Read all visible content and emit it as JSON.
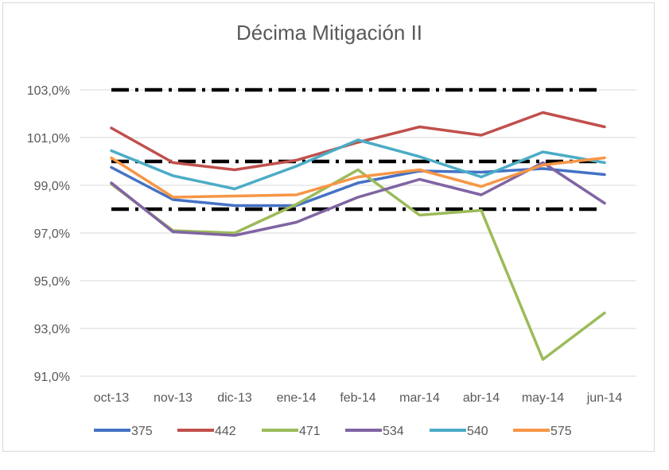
{
  "chart_data": {
    "type": "line",
    "title": "Décima Mitigación II",
    "categories": [
      "oct-13",
      "nov-13",
      "dic-13",
      "ene-14",
      "feb-14",
      "mar-14",
      "abr-14",
      "may-14",
      "jun-14"
    ],
    "yticks": [
      "91,0%",
      "93,0%",
      "95,0%",
      "97,0%",
      "99,0%",
      "101,0%",
      "103,0%"
    ],
    "ylim": [
      91,
      103
    ],
    "grid": true,
    "legend_position": "bottom",
    "reference_lines": [
      103,
      100,
      98
    ],
    "series": [
      {
        "name": "375",
        "color": "#4472C4",
        "values": [
          99.75,
          98.4,
          98.15,
          98.15,
          99.1,
          99.6,
          99.55,
          99.7,
          99.45
        ]
      },
      {
        "name": "442",
        "color": "#C0504D",
        "values": [
          101.4,
          99.95,
          99.65,
          100.05,
          100.8,
          101.45,
          101.1,
          102.05,
          101.45
        ]
      },
      {
        "name": "471",
        "color": "#9BBB59",
        "values": [
          99.05,
          97.1,
          97.0,
          98.2,
          99.65,
          97.75,
          97.95,
          91.7,
          93.65
        ]
      },
      {
        "name": "534",
        "color": "#8064A2",
        "values": [
          99.1,
          97.05,
          96.9,
          97.45,
          98.5,
          99.25,
          98.6,
          99.95,
          98.25
        ]
      },
      {
        "name": "540",
        "color": "#4BACC6",
        "values": [
          100.45,
          99.4,
          98.85,
          99.8,
          100.9,
          100.2,
          99.35,
          100.4,
          99.95
        ]
      },
      {
        "name": "575",
        "color": "#F79646",
        "values": [
          100.15,
          98.5,
          98.55,
          98.6,
          99.35,
          99.65,
          98.95,
          99.85,
          100.15
        ]
      }
    ]
  }
}
